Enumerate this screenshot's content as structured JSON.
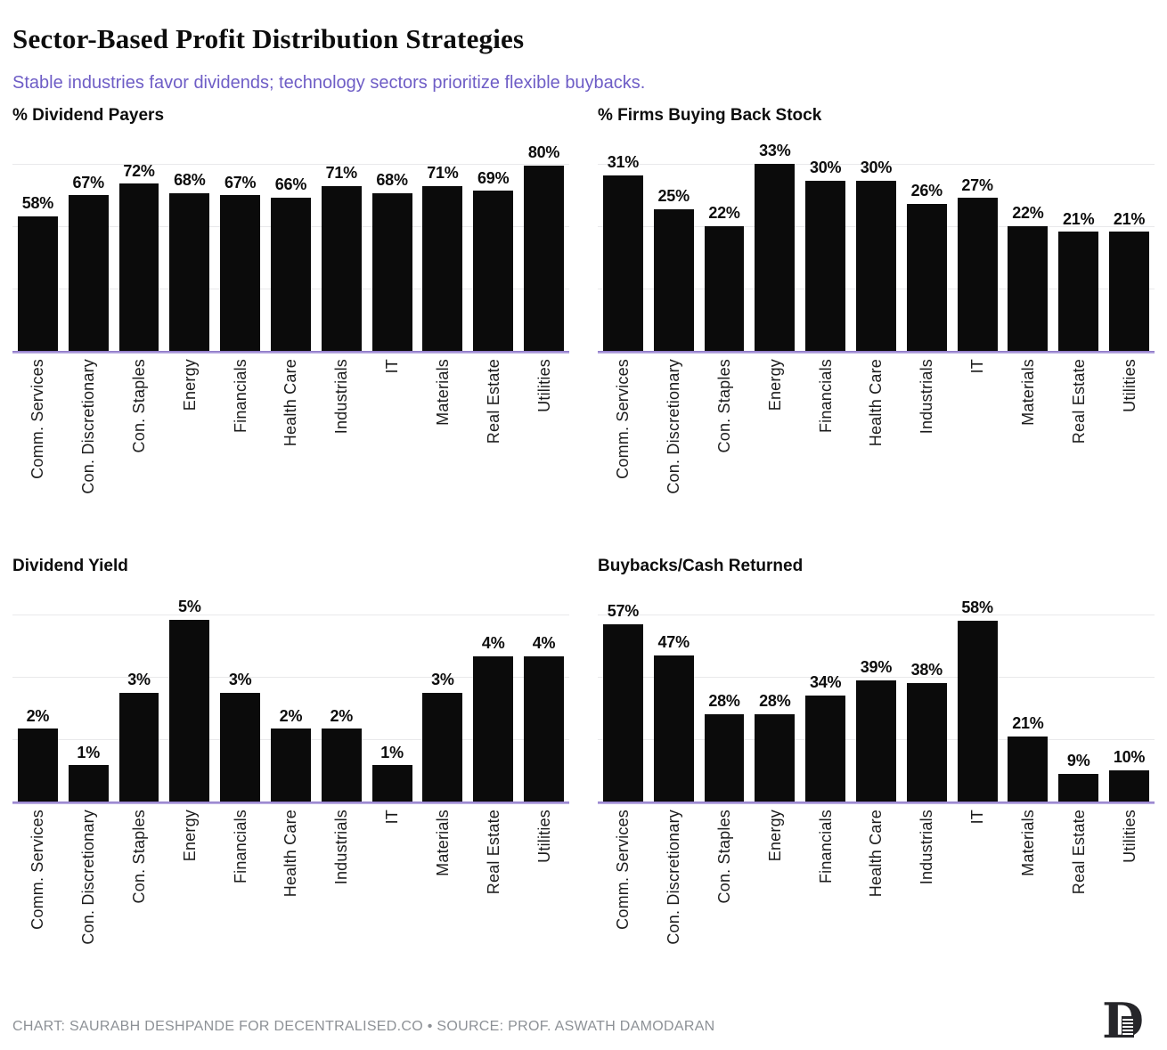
{
  "header": {
    "title": "Sector-Based Profit Distribution Strategies",
    "subtitle": "Stable industries favor dividends; technology sectors prioritize flexible buybacks."
  },
  "categories": [
    "Comm. Services",
    "Con. Discretionary",
    "Con. Staples",
    "Energy",
    "Financials",
    "Health Care",
    "Industrials",
    "IT",
    "Materials",
    "Real Estate",
    "Utilities"
  ],
  "value_suffix": "%",
  "chart_data": [
    {
      "type": "bar",
      "title": "% Dividend Payers",
      "categories": [
        "Comm. Services",
        "Con. Discretionary",
        "Con. Staples",
        "Energy",
        "Financials",
        "Health Care",
        "Industrials",
        "IT",
        "Materials",
        "Real Estate",
        "Utilities"
      ],
      "values": [
        58,
        67,
        72,
        68,
        67,
        66,
        71,
        68,
        71,
        69,
        80
      ],
      "data_labels": [
        "58%",
        "67%",
        "72%",
        "68%",
        "67%",
        "66%",
        "71%",
        "68%",
        "71%",
        "69%",
        "80%"
      ],
      "xlabel": "",
      "ylabel": "",
      "ylim": [
        0,
        80.6
      ],
      "grid": "3 horizontal gridlines, no tick labels",
      "legend": "none"
    },
    {
      "type": "bar",
      "title": "% Firms Buying Back Stock",
      "categories": [
        "Comm. Services",
        "Con. Discretionary",
        "Con. Staples",
        "Energy",
        "Financials",
        "Health Care",
        "Industrials",
        "IT",
        "Materials",
        "Real Estate",
        "Utilities"
      ],
      "values": [
        31,
        25,
        22,
        33,
        30,
        30,
        26,
        27,
        22,
        21,
        21
      ],
      "data_labels": [
        "31%",
        "25%",
        "22%",
        "33%",
        "30%",
        "30%",
        "26%",
        "27%",
        "22%",
        "21%",
        "21%"
      ],
      "xlabel": "",
      "ylabel": "",
      "ylim": [
        0,
        33
      ],
      "grid": "3 horizontal gridlines, no tick labels",
      "legend": "none"
    },
    {
      "type": "bar",
      "title": "Dividend Yield",
      "categories": [
        "Comm. Services",
        "Con. Discretionary",
        "Con. Staples",
        "Energy",
        "Financials",
        "Health Care",
        "Industrials",
        "IT",
        "Materials",
        "Real Estate",
        "Utilities"
      ],
      "values": [
        2,
        1,
        3,
        5,
        3,
        2,
        2,
        1,
        3,
        4,
        4
      ],
      "data_labels": [
        "2%",
        "1%",
        "3%",
        "5%",
        "3%",
        "2%",
        "2%",
        "1%",
        "3%",
        "4%",
        "4%"
      ],
      "xlabel": "",
      "ylabel": "",
      "ylim": [
        0,
        5.15
      ],
      "grid": "3 horizontal gridlines, no tick labels",
      "legend": "none"
    },
    {
      "type": "bar",
      "title": "Buybacks/Cash Returned",
      "categories": [
        "Comm. Services",
        "Con. Discretionary",
        "Con. Staples",
        "Energy",
        "Financials",
        "Health Care",
        "Industrials",
        "IT",
        "Materials",
        "Real Estate",
        "Utilities"
      ],
      "values": [
        57,
        47,
        28,
        28,
        34,
        39,
        38,
        58,
        21,
        9,
        10
      ],
      "data_labels": [
        "57%",
        "47%",
        "28%",
        "28%",
        "34%",
        "39%",
        "38%",
        "58%",
        "21%",
        "9%",
        "10%"
      ],
      "xlabel": "",
      "ylabel": "",
      "ylim": [
        0,
        60
      ],
      "grid": "3 horizontal gridlines, no tick labels",
      "legend": "none"
    }
  ],
  "footer": {
    "credit": "CHART: SAURABH DESHPANDE FOR DECENTRALISED.CO • SOURCE: PROF. ASWATH DAMODARAN",
    "logo_glyph": "D"
  },
  "colors": {
    "background": "#ffffff",
    "bar": "#0b0b0b",
    "title": "#0d0d0d",
    "subtitle": "#6e5dc6",
    "axis_line": "#a795d6",
    "gridline": "#e9e9eb",
    "value_label": "#0d0d0d",
    "category_label": "#1c1c1c",
    "credit_text": "#8d9196",
    "logo": "#26262a"
  }
}
